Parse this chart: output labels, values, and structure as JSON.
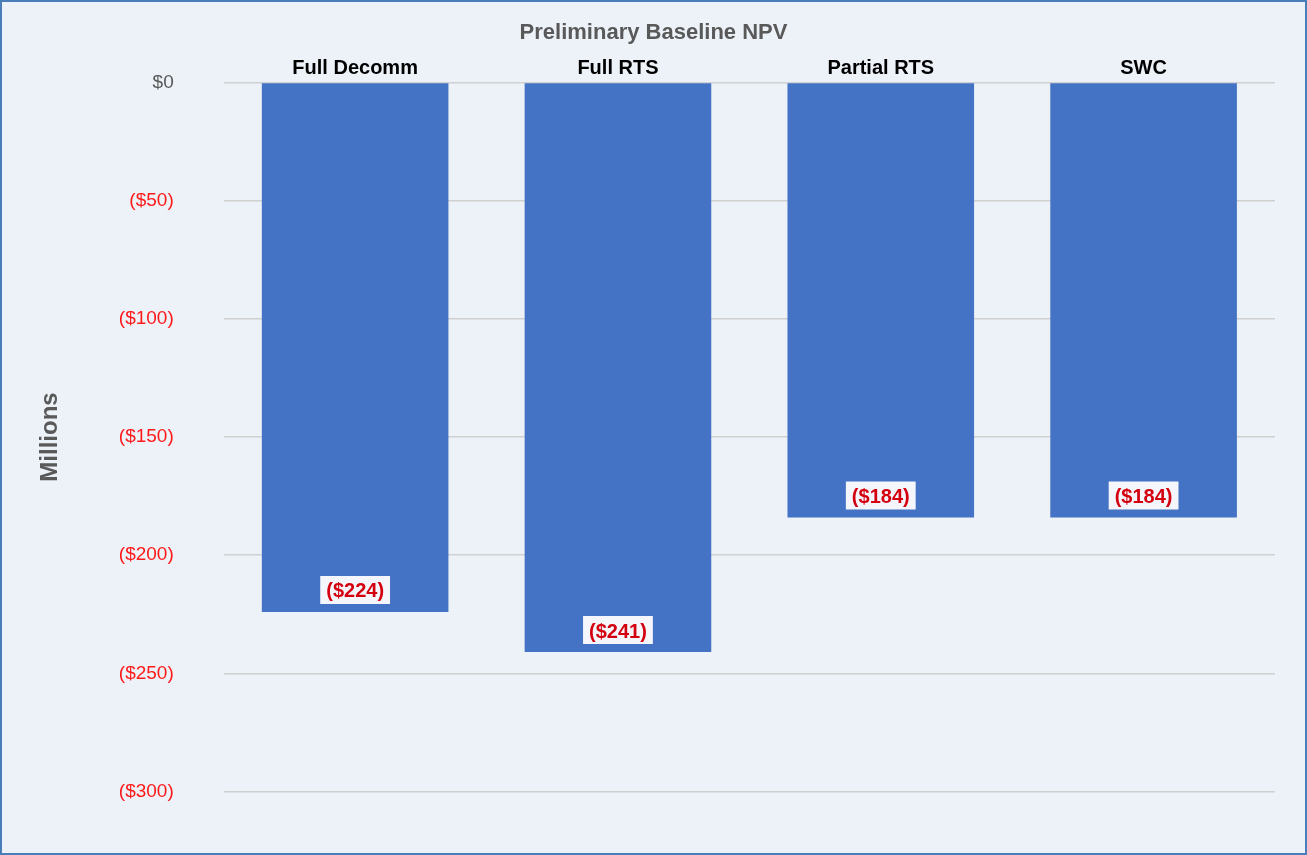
{
  "chart_data": {
    "type": "bar",
    "title": "Preliminary Baseline NPV",
    "ylabel": "Millions",
    "categories": [
      "Full Decomm",
      "Full RTS",
      "Partial RTS",
      "SWC"
    ],
    "values": [
      -224,
      -241,
      -184,
      -184
    ],
    "color": "#4472c4",
    "value_labels": [
      "($224)",
      "($241)",
      "($184)",
      "($184)"
    ],
    "ylim": [
      -300,
      0
    ],
    "yticks": [
      {
        "value": 0,
        "label": "$0"
      },
      {
        "value": -50,
        "label": "($50)"
      },
      {
        "value": -100,
        "label": "($100)"
      },
      {
        "value": -150,
        "label": "($150)"
      },
      {
        "value": -200,
        "label": "($200)"
      },
      {
        "value": -250,
        "label": "($250)"
      },
      {
        "value": -300,
        "label": "($300)"
      }
    ],
    "grid": "y",
    "legend": false
  }
}
